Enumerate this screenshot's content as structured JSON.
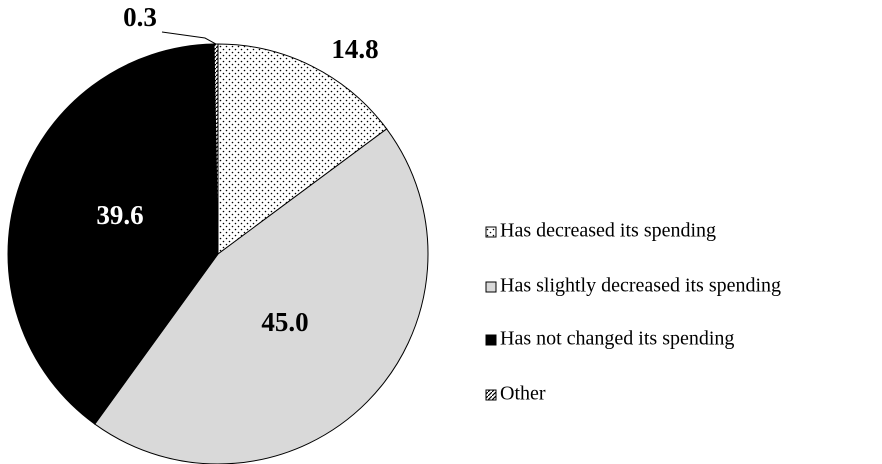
{
  "chart_data": {
    "type": "pie",
    "categories": [
      "Has decreased its spending",
      "Has slightly decreased its spending",
      "Has not changed its spending",
      "Other"
    ],
    "values": [
      14.8,
      45.0,
      39.6,
      0.3
    ],
    "value_labels": [
      "14.8",
      "45.0",
      "39.6",
      "0.3"
    ],
    "colors": [
      "#ffffff",
      "#d9d9d9",
      "#000000",
      "#ffffff"
    ],
    "patterns": [
      "dots",
      "none",
      "none",
      "diagonal"
    ],
    "legend": "right"
  }
}
